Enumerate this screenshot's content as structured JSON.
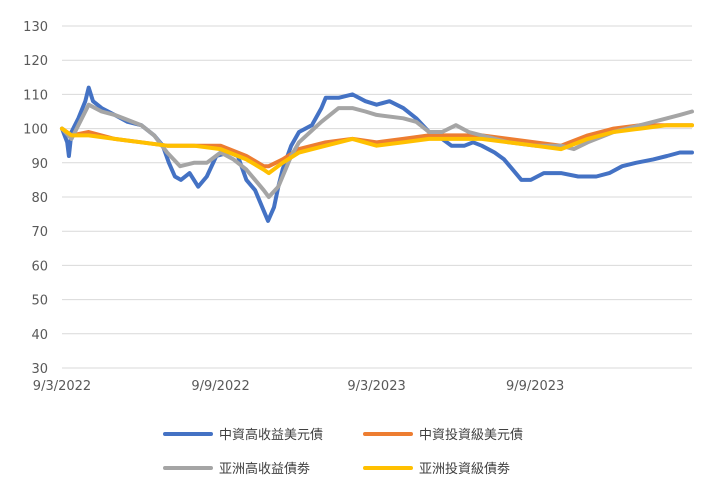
{
  "chart_data": {
    "type": "line",
    "title": "",
    "xlabel": "",
    "ylabel": "",
    "ylim": [
      30,
      130
    ],
    "y_ticks": [
      30,
      40,
      50,
      60,
      70,
      80,
      90,
      100,
      110,
      120,
      130
    ],
    "x_range": [
      "2022-03-09",
      "2024-03-09"
    ],
    "x_ticks": [
      {
        "label": "9/3/2022",
        "date": "2022-03-09"
      },
      {
        "label": "9/9/2022",
        "date": "2022-09-09"
      },
      {
        "label": "9/3/2023",
        "date": "2023-03-09"
      },
      {
        "label": "9/9/2023",
        "date": "2023-09-09"
      }
    ],
    "grid": "horizontal",
    "legend_position": "bottom",
    "series": [
      {
        "name": "中資高收益美元債",
        "color": "#4472C4",
        "points": [
          [
            "2022-03-09",
            100
          ],
          [
            "2022-03-15",
            96
          ],
          [
            "2022-03-17",
            92
          ],
          [
            "2022-03-20",
            99
          ],
          [
            "2022-03-28",
            103
          ],
          [
            "2022-04-05",
            108
          ],
          [
            "2022-04-09",
            112
          ],
          [
            "2022-04-14",
            108
          ],
          [
            "2022-04-24",
            106
          ],
          [
            "2022-05-09",
            104
          ],
          [
            "2022-05-24",
            102
          ],
          [
            "2022-06-09",
            101
          ],
          [
            "2022-06-24",
            98
          ],
          [
            "2022-07-04",
            95
          ],
          [
            "2022-07-11",
            90
          ],
          [
            "2022-07-18",
            86
          ],
          [
            "2022-07-25",
            85
          ],
          [
            "2022-08-04",
            87
          ],
          [
            "2022-08-14",
            83
          ],
          [
            "2022-08-24",
            86
          ],
          [
            "2022-09-04",
            92
          ],
          [
            "2022-09-19",
            93
          ],
          [
            "2022-09-29",
            92
          ],
          [
            "2022-10-09",
            85
          ],
          [
            "2022-10-19",
            82
          ],
          [
            "2022-10-29",
            76
          ],
          [
            "2022-11-03",
            73
          ],
          [
            "2022-11-10",
            77
          ],
          [
            "2022-11-15",
            83
          ],
          [
            "2022-11-20",
            88
          ],
          [
            "2022-11-30",
            95
          ],
          [
            "2022-12-09",
            99
          ],
          [
            "2022-12-24",
            101
          ],
          [
            "2023-01-04",
            106
          ],
          [
            "2023-01-09",
            109
          ],
          [
            "2023-01-24",
            109
          ],
          [
            "2023-02-09",
            110
          ],
          [
            "2023-02-24",
            108
          ],
          [
            "2023-03-09",
            107
          ],
          [
            "2023-03-24",
            108
          ],
          [
            "2023-04-09",
            106
          ],
          [
            "2023-04-24",
            103
          ],
          [
            "2023-05-09",
            99
          ],
          [
            "2023-05-24",
            97
          ],
          [
            "2023-06-04",
            95
          ],
          [
            "2023-06-19",
            95
          ],
          [
            "2023-06-29",
            96
          ],
          [
            "2023-07-09",
            95
          ],
          [
            "2023-07-24",
            93
          ],
          [
            "2023-08-04",
            91
          ],
          [
            "2023-08-14",
            88
          ],
          [
            "2023-08-24",
            85
          ],
          [
            "2023-09-04",
            85
          ],
          [
            "2023-09-19",
            87
          ],
          [
            "2023-10-09",
            87
          ],
          [
            "2023-10-29",
            86
          ],
          [
            "2023-11-19",
            86
          ],
          [
            "2023-12-04",
            87
          ],
          [
            "2023-12-19",
            89
          ],
          [
            "2024-01-04",
            90
          ],
          [
            "2024-01-24",
            91
          ],
          [
            "2024-02-09",
            92
          ],
          [
            "2024-02-24",
            93
          ],
          [
            "2024-03-09",
            93
          ]
        ]
      },
      {
        "name": "中資投資級美元債",
        "color": "#ED7D31",
        "points": [
          [
            "2022-03-09",
            100
          ],
          [
            "2022-03-20",
            98
          ],
          [
            "2022-04-09",
            99
          ],
          [
            "2022-05-09",
            97
          ],
          [
            "2022-06-09",
            96
          ],
          [
            "2022-07-09",
            95
          ],
          [
            "2022-08-09",
            95
          ],
          [
            "2022-09-09",
            95
          ],
          [
            "2022-10-09",
            92
          ],
          [
            "2022-10-29",
            89
          ],
          [
            "2022-11-04",
            89
          ],
          [
            "2022-11-20",
            91
          ],
          [
            "2022-12-09",
            94
          ],
          [
            "2023-01-09",
            96
          ],
          [
            "2023-02-09",
            97
          ],
          [
            "2023-03-09",
            96
          ],
          [
            "2023-04-09",
            97
          ],
          [
            "2023-05-09",
            98
          ],
          [
            "2023-06-09",
            98
          ],
          [
            "2023-07-09",
            98
          ],
          [
            "2023-08-09",
            97
          ],
          [
            "2023-09-09",
            96
          ],
          [
            "2023-10-09",
            95
          ],
          [
            "2023-11-09",
            98
          ],
          [
            "2023-12-09",
            100
          ],
          [
            "2024-01-09",
            101
          ],
          [
            "2024-02-09",
            101
          ],
          [
            "2024-03-09",
            101
          ]
        ]
      },
      {
        "name": "亚洲高收益債劵",
        "color": "#A5A5A5",
        "points": [
          [
            "2022-03-09",
            100
          ],
          [
            "2022-03-20",
            97
          ],
          [
            "2022-03-28",
            101
          ],
          [
            "2022-04-09",
            107
          ],
          [
            "2022-04-24",
            105
          ],
          [
            "2022-05-09",
            104
          ],
          [
            "2022-06-09",
            101
          ],
          [
            "2022-06-24",
            98
          ],
          [
            "2022-07-09",
            93
          ],
          [
            "2022-07-24",
            89
          ],
          [
            "2022-08-09",
            90
          ],
          [
            "2022-08-24",
            90
          ],
          [
            "2022-09-09",
            93
          ],
          [
            "2022-09-24",
            91
          ],
          [
            "2022-10-09",
            88
          ],
          [
            "2022-10-29",
            82
          ],
          [
            "2022-11-04",
            80
          ],
          [
            "2022-11-15",
            83
          ],
          [
            "2022-11-30",
            92
          ],
          [
            "2022-12-09",
            96
          ],
          [
            "2023-01-04",
            102
          ],
          [
            "2023-01-24",
            106
          ],
          [
            "2023-02-09",
            106
          ],
          [
            "2023-02-24",
            105
          ],
          [
            "2023-03-09",
            104
          ],
          [
            "2023-04-09",
            103
          ],
          [
            "2023-04-24",
            102
          ],
          [
            "2023-05-09",
            99
          ],
          [
            "2023-05-24",
            99
          ],
          [
            "2023-06-09",
            101
          ],
          [
            "2023-06-24",
            99
          ],
          [
            "2023-07-09",
            98
          ],
          [
            "2023-08-09",
            96
          ],
          [
            "2023-09-09",
            95
          ],
          [
            "2023-10-09",
            95
          ],
          [
            "2023-10-24",
            94
          ],
          [
            "2023-11-09",
            96
          ],
          [
            "2023-12-09",
            99
          ],
          [
            "2024-01-09",
            101
          ],
          [
            "2024-02-09",
            103
          ],
          [
            "2024-02-24",
            104
          ],
          [
            "2024-03-09",
            105
          ]
        ]
      },
      {
        "name": "亚洲投資級債劵",
        "color": "#FFC000",
        "points": [
          [
            "2022-03-09",
            100
          ],
          [
            "2022-03-20",
            98
          ],
          [
            "2022-04-09",
            98
          ],
          [
            "2022-05-09",
            97
          ],
          [
            "2022-06-09",
            96
          ],
          [
            "2022-07-09",
            95
          ],
          [
            "2022-08-09",
            95
          ],
          [
            "2022-09-09",
            94
          ],
          [
            "2022-10-09",
            91
          ],
          [
            "2022-10-29",
            88
          ],
          [
            "2022-11-04",
            87
          ],
          [
            "2022-11-20",
            90
          ],
          [
            "2022-12-09",
            93
          ],
          [
            "2023-01-09",
            95
          ],
          [
            "2023-02-09",
            97
          ],
          [
            "2023-03-09",
            95
          ],
          [
            "2023-04-09",
            96
          ],
          [
            "2023-05-09",
            97
          ],
          [
            "2023-06-09",
            97
          ],
          [
            "2023-07-09",
            97
          ],
          [
            "2023-08-09",
            96
          ],
          [
            "2023-09-09",
            95
          ],
          [
            "2023-10-09",
            94
          ],
          [
            "2023-11-09",
            97
          ],
          [
            "2023-12-09",
            99
          ],
          [
            "2024-01-09",
            100
          ],
          [
            "2024-02-09",
            101
          ],
          [
            "2024-03-09",
            101
          ]
        ]
      }
    ]
  }
}
